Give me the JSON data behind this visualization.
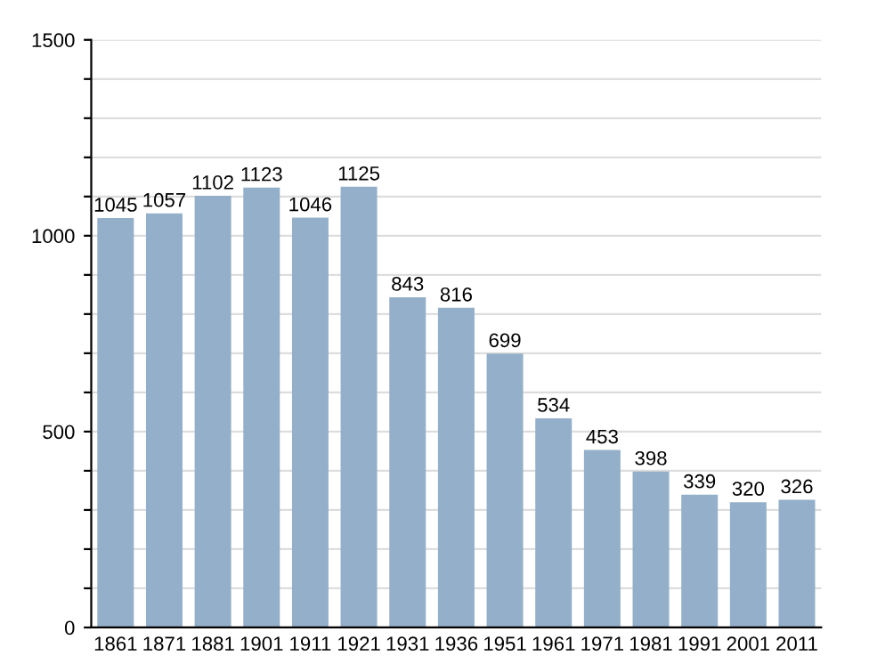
{
  "chart_data": {
    "type": "bar",
    "categories": [
      "1861",
      "1871",
      "1881",
      "1901",
      "1911",
      "1921",
      "1931",
      "1936",
      "1951",
      "1961",
      "1971",
      "1981",
      "1991",
      "2001",
      "2011"
    ],
    "values": [
      1045,
      1057,
      1102,
      1123,
      1046,
      1125,
      843,
      816,
      699,
      534,
      453,
      398,
      339,
      320,
      326
    ],
    "color": "#94afc9",
    "ylim": [
      0,
      1500
    ],
    "yticks": [
      0,
      {
        "value": 100,
        "label": null
      },
      {
        "value": 200,
        "label": null
      },
      {
        "value": 300,
        "label": null
      },
      {
        "value": 400,
        "label": null
      },
      500,
      {
        "value": 600,
        "label": null
      },
      {
        "value": 700,
        "label": null
      },
      {
        "value": 800,
        "label": null
      },
      {
        "value": 900,
        "label": null
      },
      1000,
      {
        "value": 1100,
        "label": null
      },
      {
        "value": 1200,
        "label": null
      },
      {
        "value": 1300,
        "label": null
      },
      {
        "value": 1400,
        "label": null
      },
      1500
    ],
    "grid": "y",
    "data_labels": true
  }
}
